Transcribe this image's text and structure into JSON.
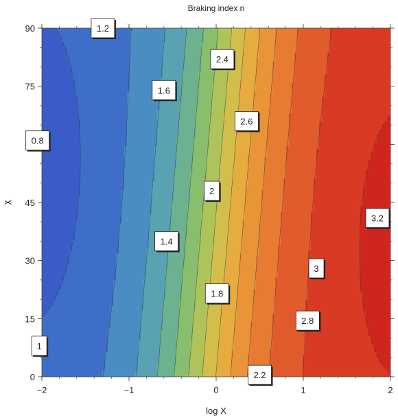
{
  "chart_data": {
    "type": "contour",
    "title": "Braking index n",
    "xlabel": "log X",
    "ylabel": "χ",
    "xlim": [
      -2,
      2
    ],
    "ylim": [
      0,
      90
    ],
    "x_ticks": [
      -2,
      -1,
      0,
      1,
      2
    ],
    "x_tick_labels": [
      "-2",
      "-1",
      "0",
      "1",
      "2"
    ],
    "y_ticks": [
      0,
      15,
      30,
      45,
      60,
      75,
      90
    ],
    "y_tick_labels": [
      "0",
      "15",
      "30",
      "45",
      "60",
      "75",
      "90"
    ],
    "contour_levels": [
      0.8,
      1,
      1.2,
      1.4,
      1.6,
      1.8,
      2,
      2.2,
      2.4,
      2.6,
      2.8,
      3,
      3.2
    ],
    "contour_labels": [
      {
        "text": "1.2",
        "x": -1.3,
        "y": 90
      },
      {
        "text": "2.4",
        "x": 0.07,
        "y": 82
      },
      {
        "text": "1.6",
        "x": -0.6,
        "y": 74
      },
      {
        "text": "2.6",
        "x": 0.35,
        "y": 66
      },
      {
        "text": "0.8",
        "x": -2.05,
        "y": 61
      },
      {
        "text": "2",
        "x": -0.05,
        "y": 48
      },
      {
        "text": "3.2",
        "x": 1.85,
        "y": 41
      },
      {
        "text": "1.4",
        "x": -0.57,
        "y": 35
      },
      {
        "text": "3",
        "x": 1.15,
        "y": 28
      },
      {
        "text": "1.8",
        "x": 0.01,
        "y": 21.5
      },
      {
        "text": "2.8",
        "x": 1.05,
        "y": 14.5
      },
      {
        "text": "1",
        "x": -2.03,
        "y": 8
      },
      {
        "text": "2.2",
        "x": 0.5,
        "y": 0.5
      }
    ],
    "grid": false,
    "colormap": "blue-green-yellow-red"
  }
}
